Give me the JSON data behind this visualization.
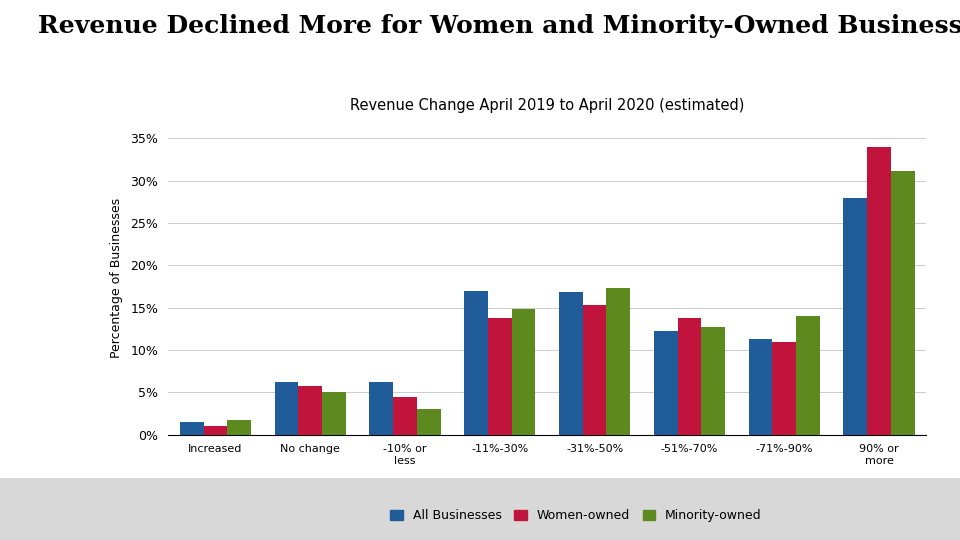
{
  "title": "Revenue Declined More for Women and Minority-Owned Businesses",
  "subtitle": "Revenue Change April 2019 to April 2020 (estimated)",
  "categories": [
    "Increased",
    "No change",
    "-10% or\nless",
    "-11%-30%",
    "-31%-50%",
    "-51%-70%",
    "-71%-90%",
    "90% or\nmore"
  ],
  "all_businesses": [
    1.5,
    6.2,
    6.2,
    17.0,
    16.8,
    12.3,
    11.3,
    28.0
  ],
  "women_owned": [
    1.0,
    5.8,
    4.5,
    13.8,
    15.3,
    13.8,
    11.0,
    34.0
  ],
  "minority_owned": [
    1.7,
    5.0,
    3.0,
    14.8,
    17.3,
    12.7,
    14.0,
    31.2
  ],
  "colors": {
    "all_businesses": "#1F5C99",
    "women_owned": "#C0143C",
    "minority_owned": "#5C8A1E"
  },
  "ylabel": "Percentage of Businesses",
  "ylim": [
    0,
    37
  ],
  "yticks": [
    0,
    5,
    10,
    15,
    20,
    25,
    30,
    35
  ],
  "ytick_labels": [
    "0%",
    "5%",
    "10%",
    "15%",
    "20%",
    "25%",
    "30%",
    "35%"
  ],
  "legend_labels": [
    "All Businesses",
    "Women-owned",
    "Minority-owned"
  ],
  "bg_color": "#FFFFFF",
  "plot_bg_color": "#FFFFFF",
  "footer_bg_color": "#D8D8D8",
  "title_fontsize": 18,
  "subtitle_fontsize": 10.5,
  "bar_width": 0.25
}
